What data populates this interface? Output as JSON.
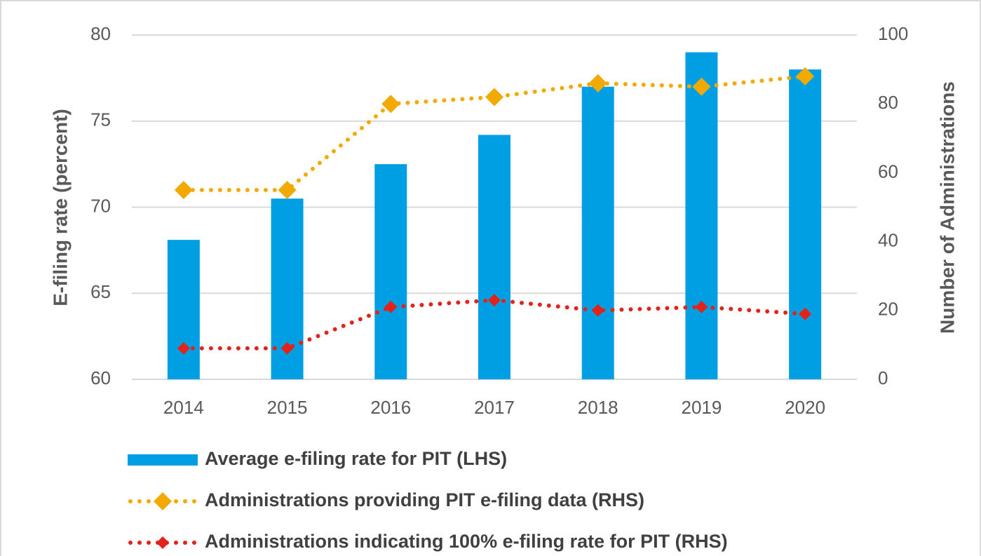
{
  "chart_data": {
    "type": "bar_line",
    "y_label": "E-filing rate (percent)",
    "y2_label": "Number of Administrations",
    "categories": [
      "2014",
      "2015",
      "2016",
      "2017",
      "2018",
      "2019",
      "2020"
    ],
    "ylim": [
      60,
      80
    ],
    "yticks": [
      60,
      65,
      70,
      75,
      80
    ],
    "y2lim": [
      0,
      100
    ],
    "y2ticks": [
      0,
      20,
      40,
      60,
      80,
      100
    ],
    "grid": true,
    "series": [
      {
        "name": "Average e-filing rate for PIT (LHS)",
        "type": "bar",
        "color": "#009fe3",
        "values": [
          68.1,
          70.5,
          72.5,
          74.2,
          77.0,
          79.0,
          78.0
        ]
      },
      {
        "name": "Administrations providing PIT e-filing data (RHS)",
        "type": "line",
        "axis": "y2",
        "color": "#f2a900",
        "values": [
          55,
          55,
          80,
          82,
          86,
          85,
          88
        ]
      },
      {
        "name": "Administrations indicating 100% e-filing rate for PIT (RHS)",
        "type": "line",
        "axis": "y2",
        "color": "#e2231a",
        "values": [
          9,
          9,
          21,
          23,
          20,
          21,
          19
        ]
      }
    ]
  }
}
